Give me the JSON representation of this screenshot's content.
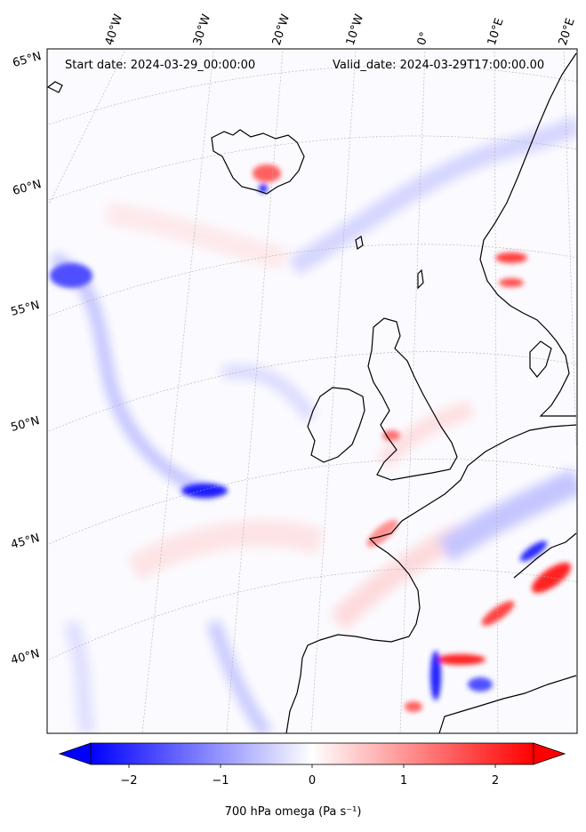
{
  "header": {
    "start_date": "Start date: 2024-03-29_00:00:00",
    "valid_date": "Valid_date: 2024-03-29T17:00:00.00"
  },
  "longitude_labels": [
    "40°W",
    "30°W",
    "20°W",
    "10°W",
    "0°",
    "10°E",
    "20°E"
  ],
  "latitude_labels": [
    "65°N",
    "60°N",
    "55°N",
    "50°N",
    "45°N",
    "40°N"
  ],
  "colorbar": {
    "ticks": [
      "−2",
      "−1",
      "0",
      "1",
      "2"
    ],
    "label": "700 hPa omega (Pa s⁻¹)",
    "min": -2.6,
    "max": 2.6,
    "colormap": [
      "#0000ff",
      "#ffffff",
      "#ff0000"
    ]
  },
  "colors": {
    "negative": "#0000ff",
    "neutral": "#ffffff",
    "positive": "#ff0000",
    "coastline": "#000000",
    "gridline": "#b0b0b0"
  }
}
